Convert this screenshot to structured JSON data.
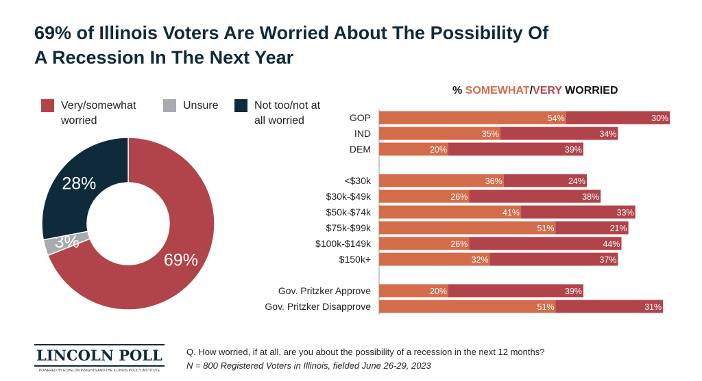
{
  "title": "69% of Illinois Voters Are Worried About The Possibility Of A Recession In The Next Year",
  "colors": {
    "very_somewhat": "#b1434a",
    "unsure": "#a6abb0",
    "not_worried": "#0f2a3a",
    "somewhat": "#d36c4b",
    "very": "#b1434a"
  },
  "chart_data": [
    {
      "type": "pie",
      "variant": "donut",
      "legend": [
        "Very/somewhat worried",
        "Unsure",
        "Not too/not at all worried"
      ],
      "legend_placement": "top",
      "slices": [
        {
          "name": "Very/somewhat worried",
          "value": 69,
          "label": "69%"
        },
        {
          "name": "Unsure",
          "value": 3,
          "label": "3%"
        },
        {
          "name": "Not too/not at all worried",
          "value": 28,
          "label": "28%"
        }
      ]
    },
    {
      "type": "bar",
      "orientation": "horizontal",
      "stacked": true,
      "title_parts": [
        "% ",
        "SOMEWHAT",
        "/",
        "VERY",
        " WORRIED"
      ],
      "categories": [
        "GOP",
        "IND",
        "DEM",
        "<$30k",
        "$30k-$49k",
        "$50k-$74k",
        "$75k-$99k",
        "$100k-$149k",
        "$150k+",
        "Gov. Pritzker Approve",
        "Gov. Pritzker Disapprove"
      ],
      "series": [
        {
          "name": "SOMEWHAT",
          "values": [
            54,
            35,
            20,
            36,
            26,
            41,
            51,
            26,
            32,
            20,
            51
          ]
        },
        {
          "name": "VERY",
          "values": [
            30,
            34,
            39,
            24,
            38,
            33,
            21,
            44,
            37,
            39,
            31
          ]
        }
      ]
    }
  ],
  "footer": {
    "question": "Q. How worried, if at all, are you about the possibility of a recession in the next 12 months?",
    "sample": "N = 800 Registered Voters in Illinois, fielded June 26-29, 2023"
  },
  "logo": {
    "name": "LINCOLN POLL",
    "tagline": "POWERED BY ECHELON INSIGHTS AND THE ILLINOIS POLICY INSTITUTE"
  }
}
